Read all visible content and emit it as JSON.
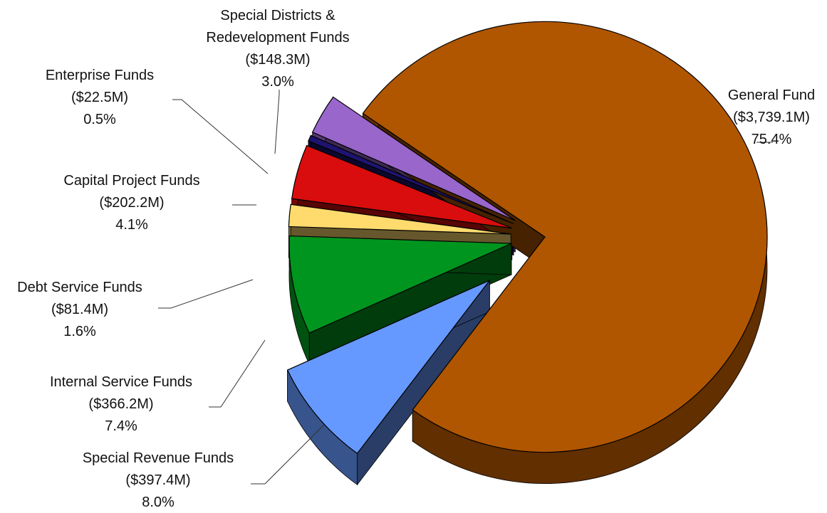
{
  "chart_data": {
    "type": "pie",
    "title": "",
    "categories": [
      "General Fund",
      "Special Revenue Funds",
      "Internal Service Funds",
      "Debt Service Funds",
      "Capital Project Funds",
      "Enterprise Funds",
      "Special Districts & Redevelopment Funds"
    ],
    "values": [
      3739.1,
      397.4,
      366.2,
      81.4,
      202.2,
      22.5,
      148.3
    ],
    "colors": [
      "#B05600",
      "#6699FF",
      "#00951F",
      "#FFDB6E",
      "#D90D0D",
      "#1E1470",
      "#9966CC"
    ],
    "slices": [
      {
        "name_lines": [
          "General Fund"
        ],
        "amount": "($3,739.1M)",
        "percent": "75.4%"
      },
      {
        "name_lines": [
          "Special Revenue Funds"
        ],
        "amount": "($397.4M)",
        "percent": "8.0%"
      },
      {
        "name_lines": [
          "Internal Service Funds"
        ],
        "amount": "($366.2M)",
        "percent": "7.4%"
      },
      {
        "name_lines": [
          "Debt Service Funds"
        ],
        "amount": "($81.4M)",
        "percent": "1.6%"
      },
      {
        "name_lines": [
          "Capital Project Funds"
        ],
        "amount": "($202.2M)",
        "percent": "4.1%"
      },
      {
        "name_lines": [
          "Enterprise Funds"
        ],
        "amount": "($22.5M)",
        "percent": "0.5%"
      },
      {
        "name_lines": [
          "Special Districts &",
          "Redevelopment Funds"
        ],
        "amount": "($148.3M)",
        "percent": "3.0%"
      }
    ]
  }
}
